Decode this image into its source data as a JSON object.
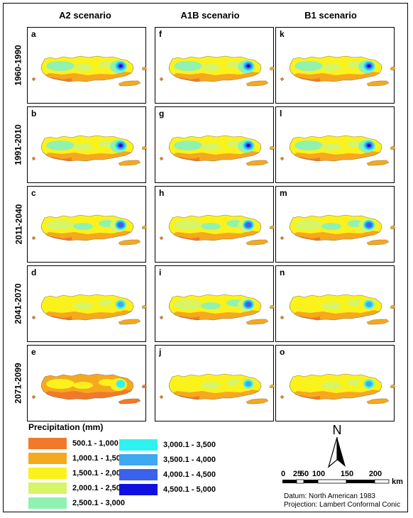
{
  "headers": [
    "A2 scenario",
    "A1B scenario",
    "B1 scenario"
  ],
  "periods": [
    "1960-1990",
    "1991-2010",
    "2011-2040",
    "2041-2070",
    "2071-2099"
  ],
  "panel_letters": [
    [
      "a",
      "f",
      "k"
    ],
    [
      "b",
      "g",
      "l"
    ],
    [
      "c",
      "h",
      "m"
    ],
    [
      "d",
      "i",
      "n"
    ],
    [
      "e",
      "j",
      "o"
    ]
  ],
  "panel_palettes": [
    [
      "wet",
      "wet",
      "wet"
    ],
    [
      "wet",
      "wet",
      "wet"
    ],
    [
      "mid",
      "mid",
      "mid"
    ],
    [
      "dry",
      "mid",
      "dry"
    ],
    [
      "vdry",
      "dry",
      "dry"
    ]
  ],
  "legend": {
    "title": "Precipitation (mm)",
    "items": [
      {
        "label": "500.1 - 1,000",
        "color": "#f07a2a"
      },
      {
        "label": "1,000.1 - 1,500",
        "color": "#f6a81e"
      },
      {
        "label": "1,500.1 - 2,000",
        "color": "#fbf21c"
      },
      {
        "label": "2,000.1 - 2,500",
        "color": "#d6f567"
      },
      {
        "label": "2,500.1 - 3,000",
        "color": "#8ff2b0"
      },
      {
        "label": "3,000.1 - 3,500",
        "color": "#2ef2f0"
      },
      {
        "label": "3,500.1 - 4,000",
        "color": "#3da9f0"
      },
      {
        "label": "4,000.1 - 4,500",
        "color": "#3a62ec"
      },
      {
        "label": "4,500.1 - 5,000",
        "color": "#1010e0"
      }
    ]
  },
  "north_label": "N",
  "scale": {
    "ticks": [
      "0",
      "25",
      "50",
      "100",
      "150",
      "200"
    ],
    "unit": "km"
  },
  "credits": {
    "datum": "Datum: North American 1983",
    "projection": "Projection: Lambert Conformal Conic"
  }
}
